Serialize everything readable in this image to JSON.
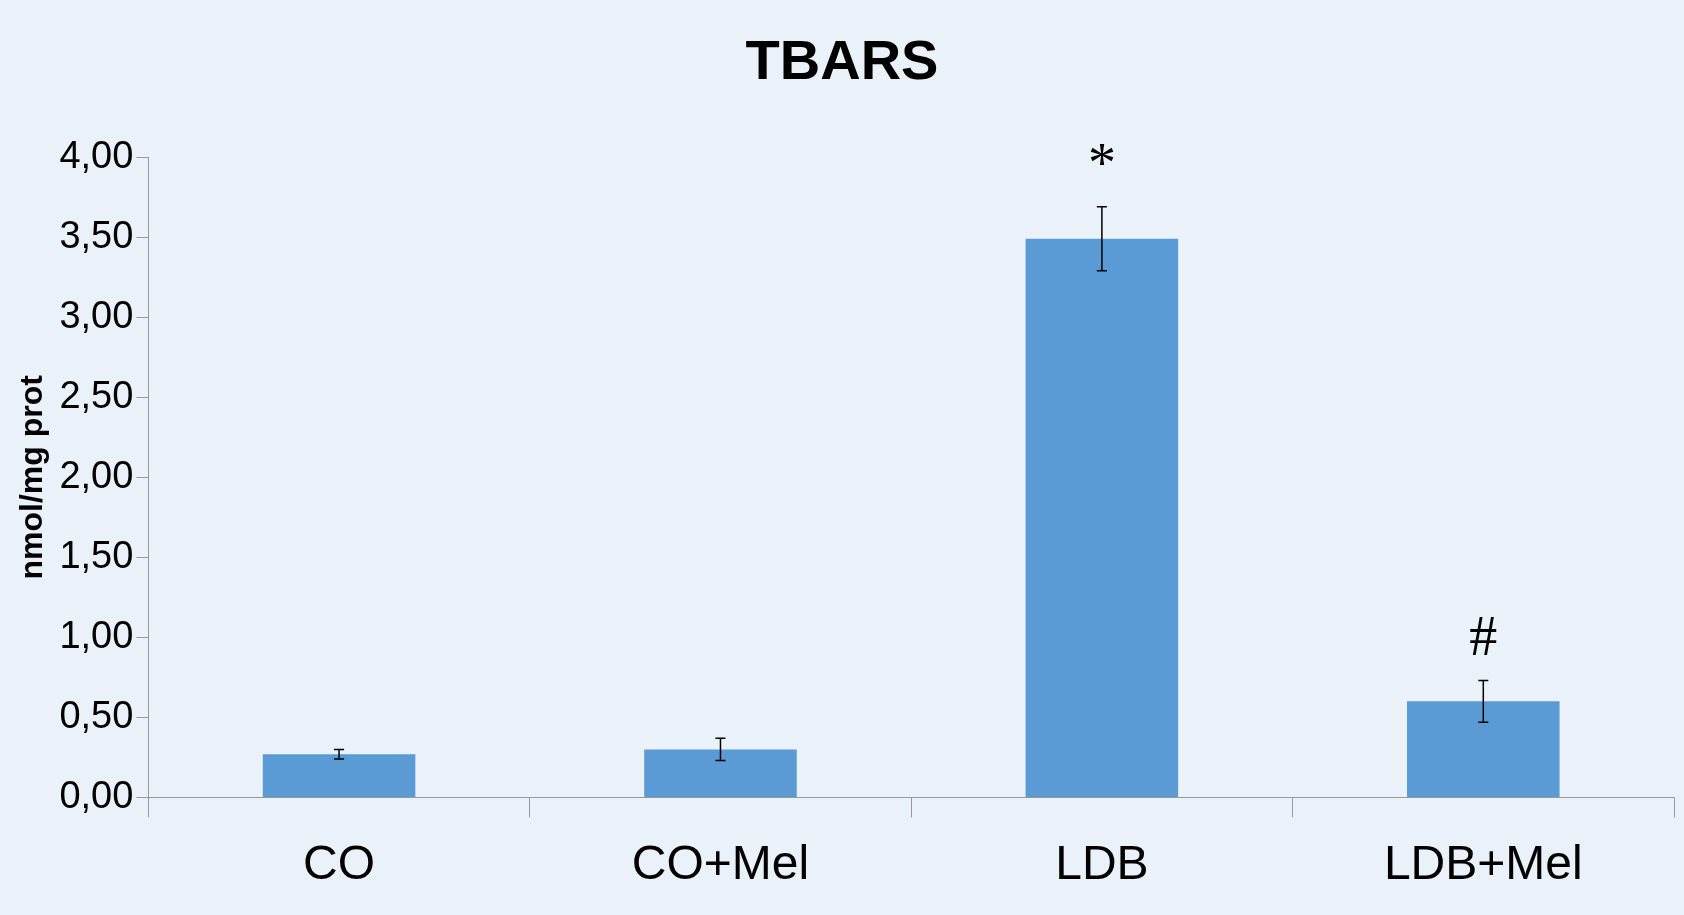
{
  "chart_data": {
    "type": "bar",
    "title": "TBARS",
    "ylabel": "nmol/mg prot",
    "categories": [
      "CO",
      "CO+Mel",
      "LDB",
      "LDB+Mel"
    ],
    "values": [
      0.27,
      0.3,
      3.49,
      0.6
    ],
    "errors": [
      0.03,
      0.07,
      0.2,
      0.13
    ],
    "color": "#5b9bd5",
    "ylim": [
      0,
      4
    ],
    "yticks": [
      {
        "value": 0,
        "label": "0,00"
      },
      {
        "value": 0.5,
        "label": "0,50"
      },
      {
        "value": 1,
        "label": "1,00"
      },
      {
        "value": 1.5,
        "label": "1,50"
      },
      {
        "value": 2,
        "label": "2,00"
      },
      {
        "value": 2.5,
        "label": "2,50"
      },
      {
        "value": 3,
        "label": "3,00"
      },
      {
        "value": 3.5,
        "label": "3,50"
      },
      {
        "value": 4,
        "label": "4,00"
      }
    ],
    "annotations": [
      {
        "text": "*",
        "x": "LDB",
        "y": 3.69
      },
      {
        "text": "#",
        "x": "LDB+Mel",
        "y": 0.73
      }
    ],
    "grid": false,
    "legend": false
  }
}
